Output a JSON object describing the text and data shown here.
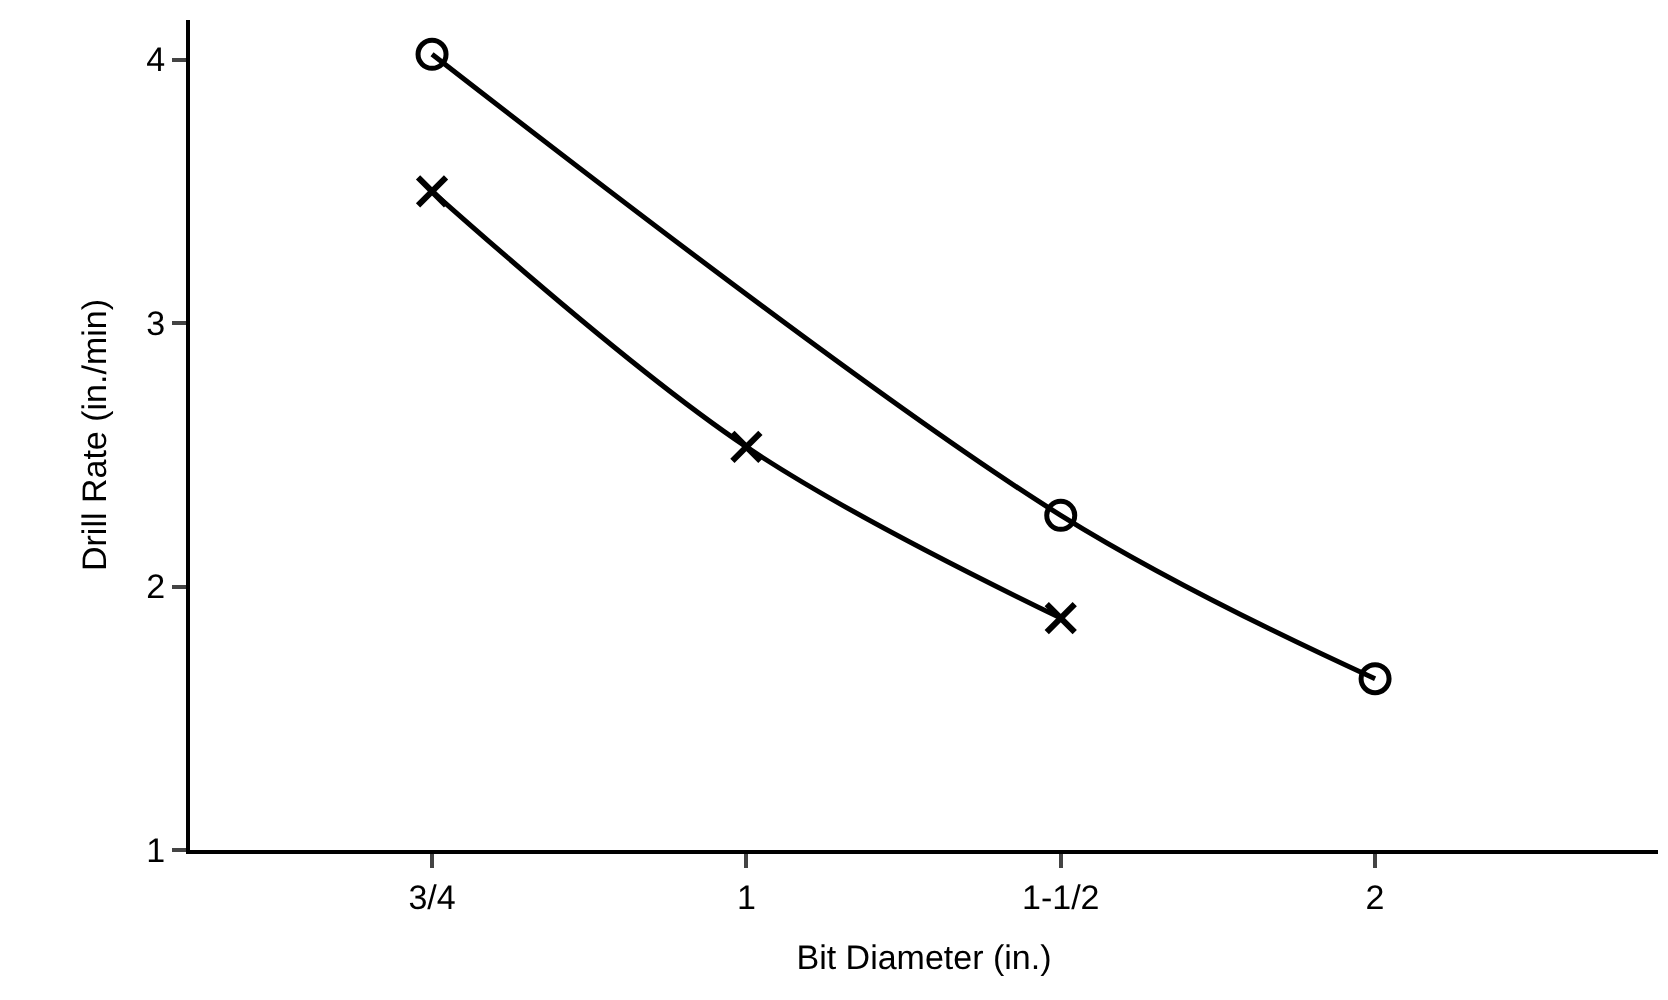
{
  "chart_data": {
    "type": "line",
    "xlabel": "Bit Diameter (in.)",
    "ylabel": "Drill Rate (in./min)",
    "categories": [
      "3/4",
      "1",
      "1-1/2",
      "2"
    ],
    "series": [
      {
        "color": "#000000",
        "marker": "circle",
        "values": [
          4.02,
          null,
          2.27,
          1.65
        ]
      },
      {
        "color": "#000000",
        "marker": "cross",
        "values": [
          3.5,
          2.53,
          1.88,
          null
        ]
      }
    ],
    "ylim": [
      1,
      4.15
    ],
    "yticks": [
      1,
      2,
      3,
      4
    ],
    "line_style": "solid"
  }
}
